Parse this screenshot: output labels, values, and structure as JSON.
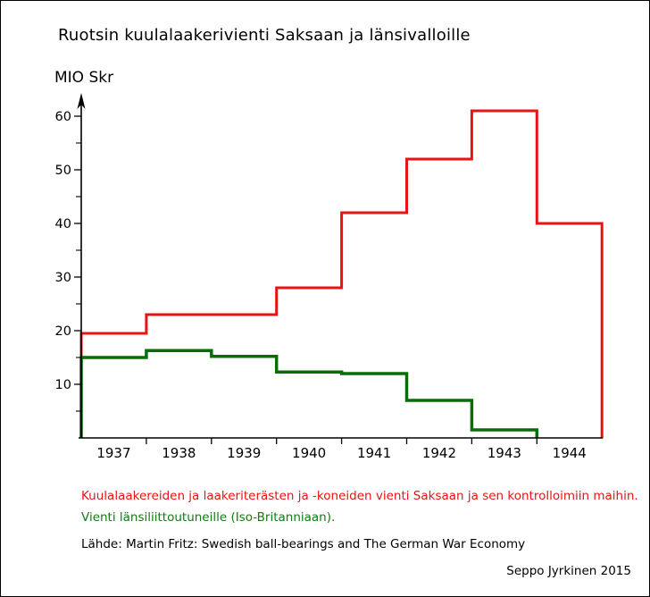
{
  "title": "Ruotsin kuulalaakerivienti Saksaan ja länsivalloille",
  "y_axis_label": "MIO Skr",
  "chart_data": {
    "type": "line",
    "subtype": "step",
    "title": "Ruotsin kuulalaakerivienti Saksaan ja länsivalloille",
    "xlabel": "",
    "ylabel": "MIO Skr",
    "categories": [
      "1937",
      "1938",
      "1939",
      "1940",
      "1941",
      "1942",
      "1943",
      "1944"
    ],
    "series": [
      {
        "name": "Kuulalaakereiden ja laakeriterästen ja -koneiden vienti Saksaan ja sen kontrolloimiin maihin",
        "color": "#e81414",
        "values": [
          19.5,
          23,
          23,
          28,
          42,
          52,
          61,
          40
        ]
      },
      {
        "name": "Vienti länsiliittoutuneille (Iso-Britanniaan)",
        "color": "#076e07",
        "values": [
          15,
          16.3,
          15.2,
          12.3,
          12,
          7,
          1.5
        ]
      }
    ],
    "y_ticks": [
      10,
      20,
      30,
      40,
      50,
      60
    ],
    "y_minor_ticks": [
      5,
      15,
      25,
      35,
      45,
      55
    ],
    "ylim": [
      0,
      63
    ],
    "grid": false,
    "legend_position": "captions-below"
  },
  "captions": {
    "red": "Kuulalaakereiden ja laakeriterästen ja -koneiden vienti Saksaan ja sen kontrolloimiin maihin.",
    "green": "Vienti länsiliittoutuneille (Iso-Britanniaan).",
    "source": "Lähde: Martin Fritz: Swedish ball-bearings and The German War Economy",
    "credit": "Seppo Jyrkinen 2015"
  },
  "colors": {
    "red_line": "#e81414",
    "green_line": "#076e07",
    "red_text": "#e81414",
    "green_text": "#157a15",
    "axis": "#000000",
    "background": "#ffffff"
  }
}
